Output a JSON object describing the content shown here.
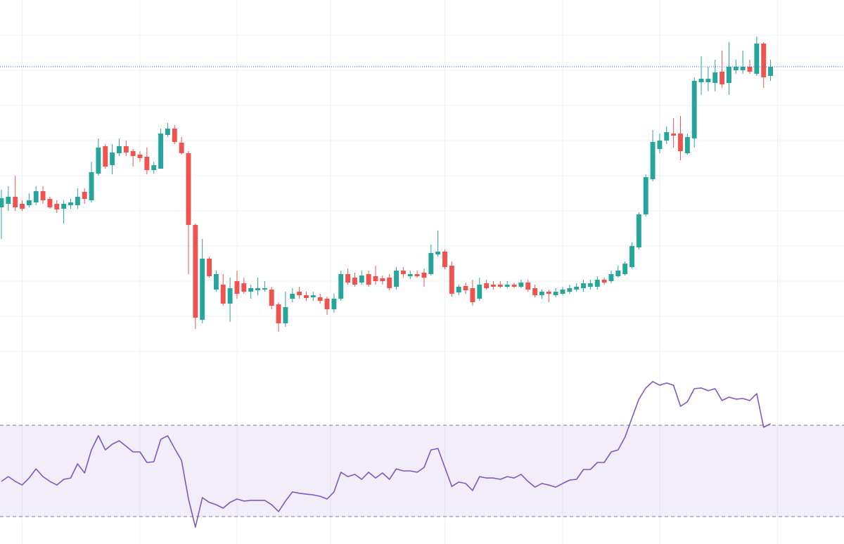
{
  "chart_data": [
    {
      "type": "candlestick",
      "up_color": "#26a69a",
      "down_color": "#ef5350",
      "grid": true,
      "grid_color": "#f0f0f3",
      "price_line": true,
      "price_line_color": "#2962ff",
      "xlim": [
        -0.2,
        121.6
      ],
      "xticks": [
        3,
        20,
        34,
        47.5,
        64,
        81,
        95,
        112
      ],
      "ylim": [
        0,
        500
      ],
      "yticks": [
        0,
        50,
        100,
        150,
        200,
        250,
        300,
        350,
        400,
        450
      ],
      "open": [
        205,
        210,
        220,
        210,
        208,
        212,
        228,
        217,
        210,
        203,
        208,
        208,
        227,
        215,
        253,
        292,
        265,
        282,
        292,
        285,
        280,
        277,
        258,
        260,
        308,
        317,
        297,
        282,
        180,
        45,
        132,
        88,
        95,
        68,
        100,
        97,
        85,
        87,
        88,
        88,
        67,
        40,
        75,
        85,
        80,
        77,
        77,
        75,
        60,
        75,
        110,
        105,
        98,
        110,
        107,
        104,
        105,
        92,
        115,
        107,
        110,
        112,
        110,
        138,
        142,
        122,
        84,
        93,
        90,
        75,
        97,
        95,
        95,
        92,
        95,
        92,
        98,
        90,
        80,
        85,
        80,
        82,
        85,
        88,
        90,
        92,
        92,
        102,
        100,
        107,
        110,
        120,
        148,
        195,
        245,
        288,
        300,
        310,
        310,
        282,
        303,
        383,
        383,
        382,
        398,
        382,
        400,
        400,
        405,
        395,
        438,
        392
      ],
      "high": [
        230,
        235,
        250,
        215,
        225,
        235,
        235,
        220,
        215,
        215,
        217,
        232,
        232,
        270,
        303,
        295,
        295,
        303,
        300,
        288,
        285,
        290,
        270,
        317,
        325,
        322,
        305,
        285,
        182,
        160,
        135,
        115,
        110,
        105,
        115,
        105,
        95,
        105,
        100,
        92,
        70,
        85,
        90,
        92,
        85,
        85,
        82,
        78,
        82,
        115,
        118,
        112,
        115,
        115,
        122,
        108,
        110,
        120,
        120,
        115,
        115,
        118,
        152,
        172,
        145,
        128,
        95,
        98,
        102,
        105,
        102,
        100,
        100,
        100,
        98,
        102,
        102,
        95,
        88,
        88,
        90,
        92,
        95,
        97,
        102,
        102,
        107,
        105,
        115,
        122,
        128,
        155,
        198,
        252,
        315,
        310,
        320,
        332,
        335,
        310,
        390,
        420,
        405,
        415,
        428,
        440,
        415,
        428,
        415,
        448,
        440,
        415
      ],
      "low": [
        160,
        200,
        200,
        200,
        205,
        208,
        210,
        203,
        197,
        182,
        203,
        203,
        210,
        212,
        250,
        260,
        252,
        278,
        278,
        263,
        270,
        252,
        253,
        260,
        305,
        295,
        280,
        110,
        32,
        40,
        105,
        85,
        65,
        42,
        75,
        82,
        75,
        80,
        85,
        60,
        28,
        35,
        70,
        75,
        72,
        72,
        68,
        52,
        55,
        72,
        95,
        92,
        95,
        92,
        95,
        95,
        87,
        88,
        105,
        103,
        105,
        92,
        108,
        135,
        117,
        78,
        80,
        82,
        65,
        72,
        88,
        88,
        90,
        90,
        90,
        90,
        85,
        77,
        75,
        70,
        77,
        80,
        82,
        85,
        85,
        88,
        88,
        95,
        97,
        105,
        108,
        118,
        145,
        192,
        242,
        282,
        295,
        290,
        272,
        280,
        290,
        365,
        370,
        370,
        375,
        365,
        395,
        395,
        395,
        392,
        375,
        385
      ],
      "close": [
        218,
        220,
        205,
        203,
        215,
        228,
        215,
        205,
        202,
        210,
        212,
        220,
        217,
        255,
        290,
        263,
        283,
        292,
        283,
        278,
        275,
        258,
        265,
        310,
        317,
        298,
        282,
        180,
        48,
        132,
        107,
        110,
        68,
        90,
        82,
        85,
        90,
        90,
        90,
        65,
        40,
        63,
        82,
        80,
        76,
        80,
        72,
        60,
        75,
        110,
        98,
        95,
        108,
        95,
        100,
        100,
        90,
        115,
        110,
        110,
        107,
        105,
        140,
        142,
        120,
        82,
        92,
        87,
        70,
        95,
        90,
        92,
        92,
        95,
        92,
        98,
        88,
        80,
        85,
        82,
        85,
        88,
        90,
        92,
        97,
        97,
        102,
        98,
        110,
        115,
        125,
        150,
        195,
        248,
        298,
        300,
        312,
        307,
        285,
        305,
        385,
        388,
        388,
        397,
        380,
        405,
        405,
        405,
        398,
        438,
        390,
        405
      ]
    },
    {
      "type": "line",
      "color": "#7e57c2",
      "band_color": "#7e57c2",
      "xlim": [
        -0.2,
        121.6
      ],
      "ylim": [
        18,
        102.3
      ],
      "upper_band": 70,
      "lower_band": 30,
      "values": [
        45.4,
        47.5,
        45.4,
        43.8,
        46.9,
        50.9,
        47.5,
        45.4,
        43.8,
        46.3,
        46.9,
        53.1,
        49.1,
        59.2,
        65.4,
        59.2,
        61.7,
        63.2,
        60.8,
        58.3,
        58.3,
        53.7,
        54,
        63.8,
        65.4,
        59.8,
        54.6,
        37.7,
        25.4,
        38.3,
        36.2,
        35.2,
        33.7,
        36.2,
        37.7,
        36.8,
        37.1,
        37.1,
        37.1,
        35.2,
        32.2,
        36.8,
        40.8,
        40.2,
        39.8,
        39.5,
        38.9,
        37.7,
        40.8,
        49.4,
        47.5,
        48.5,
        46.3,
        49.4,
        46.9,
        49.1,
        46.3,
        50.9,
        50,
        50,
        49.4,
        51.5,
        59.2,
        59.8,
        51.5,
        43.2,
        45.1,
        44.5,
        41.4,
        47.5,
        46.9,
        46.9,
        46.3,
        47.5,
        46.9,
        48.5,
        45.4,
        42.9,
        44.5,
        43.8,
        42.9,
        44.5,
        46,
        46.3,
        50.6,
        50.6,
        53.7,
        53.7,
        58.3,
        59.2,
        64.8,
        73.1,
        81.4,
        86.3,
        89.1,
        87.5,
        88.5,
        87.5,
        78.3,
        80.2,
        86,
        86.3,
        85.1,
        86,
        80.8,
        82.3,
        81.4,
        81.7,
        80.8,
        83.8,
        69.1,
        70.6
      ]
    }
  ]
}
